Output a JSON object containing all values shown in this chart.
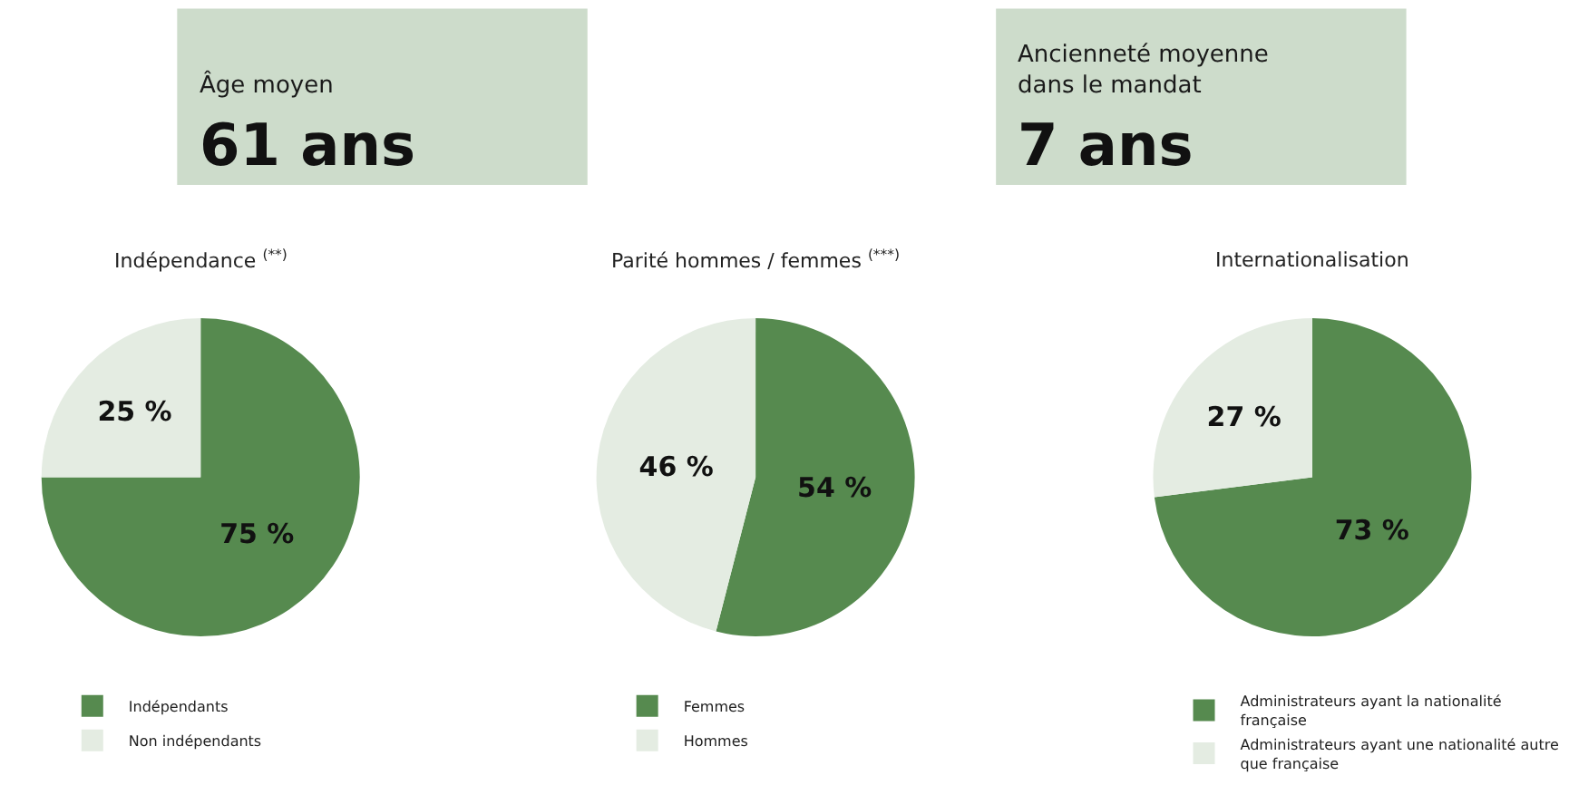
{
  "chart_data": [
    {
      "type": "other",
      "title": "Âge moyen",
      "subtitle": "61 ans",
      "color": "#cddccb"
    },
    {
      "type": "other",
      "title": "Ancienneté moyenne dans le mandat",
      "subtitle": "7 ans",
      "color": "#cddccb"
    },
    {
      "type": "pie",
      "title": "Indépendance $^{(**)}$",
      "categories": [
        "Indépendants",
        "Non indépendants"
      ],
      "values": [
        75,
        25
      ],
      "value_labels": [
        "75 %",
        "25 %"
      ],
      "colors": [
        "#568a4f",
        "#e4ece2"
      ],
      "legend": "bottom left"
    },
    {
      "type": "pie",
      "title": "Parité hommes / femmes $^{(***)}$",
      "categories": [
        "Femmes",
        "Hommes"
      ],
      "values": [
        54,
        46
      ],
      "value_labels": [
        "54 %",
        "46 %"
      ],
      "colors": [
        "#568a4f",
        "#e4ece2"
      ],
      "legend": "bottom left"
    },
    {
      "type": "pie",
      "title": "Internationalisation",
      "categories": [
        "Administrateurs ayant la nationalité française",
        "Administrateurs ayant une nationalité autre que française"
      ],
      "values": [
        73,
        27
      ],
      "value_labels": [
        "73 %",
        "27 %"
      ],
      "colors": [
        "#568a4f",
        "#e4ece2"
      ],
      "legend": "bottom"
    }
  ]
}
